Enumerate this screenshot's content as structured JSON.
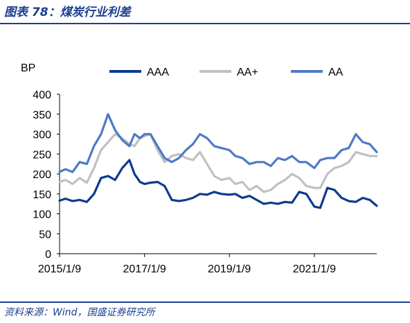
{
  "figure": {
    "title": "图表 78：煤炭行业利差",
    "source": "资料来源：Wind，国盛证券研究所"
  },
  "colors": {
    "accent": "#1b3f8f"
  },
  "chart_data": {
    "type": "line",
    "title": "",
    "xlabel": "",
    "ylabel": "BP",
    "ylim": [
      0,
      400
    ],
    "yticks": [
      0,
      50,
      100,
      150,
      200,
      250,
      300,
      350,
      400
    ],
    "xlim": [
      "2015-01-09",
      "2022-06-30"
    ],
    "xticks": [
      "2015/1/9",
      "2017/1/9",
      "2019/1/9",
      "2021/1/9"
    ],
    "grid": false,
    "legend_position": "top",
    "x": [
      "2015-01-09",
      "2015-03-01",
      "2015-05-01",
      "2015-07-01",
      "2015-09-01",
      "2015-11-01",
      "2016-01-01",
      "2016-03-01",
      "2016-05-01",
      "2016-07-01",
      "2016-09-01",
      "2016-10-15",
      "2016-12-01",
      "2017-01-09",
      "2017-03-01",
      "2017-05-01",
      "2017-07-01",
      "2017-09-01",
      "2017-11-01",
      "2018-01-01",
      "2018-03-01",
      "2018-05-01",
      "2018-07-01",
      "2018-09-01",
      "2018-11-01",
      "2019-01-09",
      "2019-03-01",
      "2019-05-01",
      "2019-07-01",
      "2019-09-01",
      "2019-11-01",
      "2020-01-01",
      "2020-03-01",
      "2020-05-01",
      "2020-07-01",
      "2020-09-01",
      "2020-11-01",
      "2021-01-09",
      "2021-03-01",
      "2021-05-01",
      "2021-07-01",
      "2021-09-01",
      "2021-11-01",
      "2022-01-01",
      "2022-03-01",
      "2022-05-01",
      "2022-06-30"
    ],
    "series": [
      {
        "name": "AAA",
        "color": "#0b3b8f",
        "values": [
          133,
          138,
          132,
          135,
          130,
          150,
          190,
          195,
          185,
          215,
          235,
          200,
          180,
          175,
          178,
          180,
          170,
          135,
          132,
          135,
          140,
          150,
          148,
          155,
          150,
          148,
          150,
          140,
          145,
          135,
          125,
          128,
          125,
          130,
          128,
          155,
          150,
          118,
          115,
          165,
          160,
          140,
          132,
          130,
          140,
          135,
          120
        ]
      },
      {
        "name": "AA+",
        "color": "#c0c0c0",
        "values": [
          180,
          185,
          175,
          190,
          178,
          215,
          260,
          280,
          300,
          290,
          275,
          270,
          290,
          295,
          300,
          260,
          230,
          245,
          250,
          240,
          235,
          255,
          225,
          195,
          185,
          190,
          175,
          180,
          160,
          170,
          155,
          160,
          175,
          185,
          200,
          190,
          170,
          165,
          165,
          200,
          215,
          220,
          230,
          255,
          250,
          245,
          245
        ]
      },
      {
        "name": "AA",
        "color": "#4f79c6",
        "values": [
          205,
          212,
          205,
          230,
          225,
          270,
          300,
          350,
          310,
          285,
          270,
          300,
          290,
          300,
          300,
          270,
          240,
          230,
          240,
          260,
          275,
          300,
          290,
          270,
          265,
          260,
          245,
          240,
          225,
          230,
          230,
          220,
          240,
          235,
          245,
          230,
          230,
          215,
          235,
          240,
          240,
          260,
          265,
          300,
          280,
          275,
          255
        ]
      }
    ]
  }
}
